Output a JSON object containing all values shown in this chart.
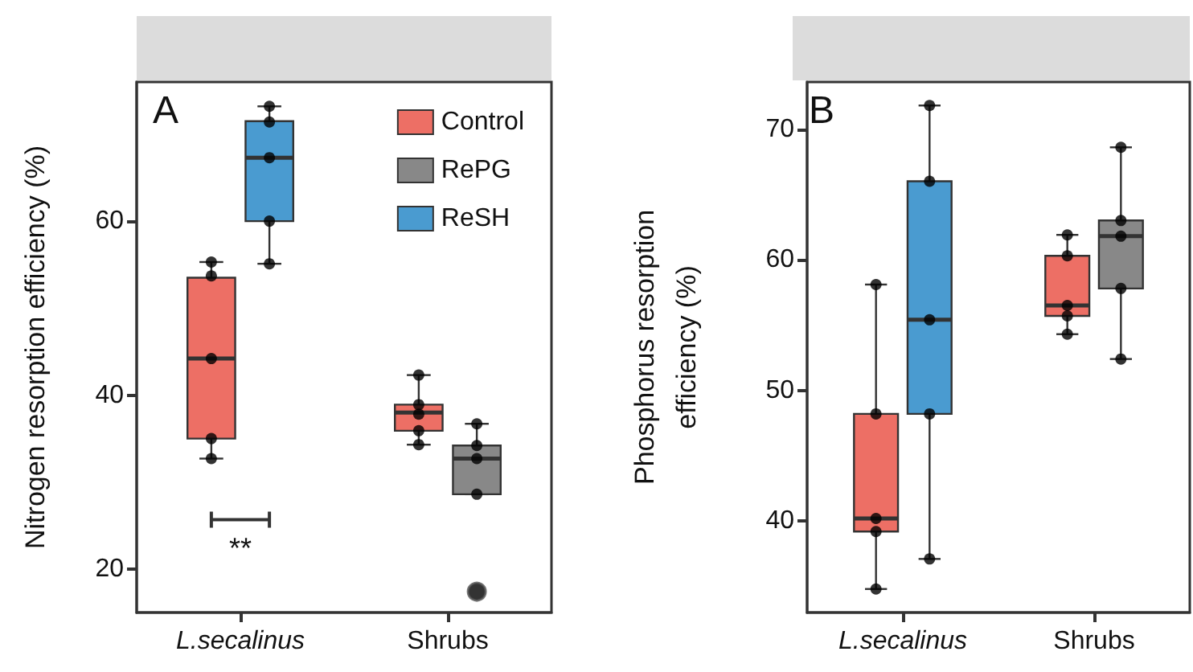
{
  "chart_data": [
    {
      "type": "box",
      "ylabel": "Nitrogen resorption efficiency (%)",
      "categories": [
        "L.secalinus",
        "Shrubs"
      ],
      "ylim": [
        15,
        76
      ],
      "yticks": [
        20,
        40,
        60
      ],
      "grid": false,
      "legend": "top right",
      "annotations": [
        "A",
        "**"
      ],
      "series": [
        {
          "name": "Control",
          "color": "#ed6f65",
          "boxes": [
            {
              "low": 32.7,
              "q1": 35.0,
              "median": 44.2,
              "q3": 53.5,
              "high": 55.3
            },
            {
              "low": 34.3,
              "q1": 35.9,
              "median": 38.0,
              "q3": 38.9,
              "high": 42.3
            }
          ]
        },
        {
          "type": "scatter",
          "color": "#000000",
          "x": [
            "L.secalinus",
            "L.secalinus",
            "L.secalinus",
            "L.secalinus",
            "L.secalinus",
            "Shrubs",
            "Shrubs",
            "Shrubs",
            "Shrubs",
            "Shrubs"
          ],
          "values": [
            55.3,
            53.7,
            44.2,
            35.0,
            32.7,
            42.3,
            38.9,
            37.8,
            35.9,
            34.3
          ]
        },
        {
          "name": "RePG",
          "color": "#888888",
          "boxes": [
            null,
            {
              "low": 28.6,
              "q1": 28.6,
              "median": 32.7,
              "q3": 34.2,
              "high": 36.7,
              "outliers": [
                17.4
              ]
            }
          ]
        },
        {
          "type": "scatter",
          "color": "#000000",
          "x": [
            "Shrubs",
            "Shrubs",
            "Shrubs",
            "Shrubs"
          ],
          "values": [
            36.7,
            34.2,
            32.7,
            28.6
          ]
        },
        {
          "name": "ReSH",
          "color": "#4a9bd0",
          "boxes": [
            {
              "low": 55.1,
              "q1": 60.0,
              "median": 67.3,
              "q3": 71.5,
              "high": 73.2
            },
            null
          ]
        },
        {
          "type": "scatter",
          "color": "#000000",
          "x": [
            "L.secalinus",
            "L.secalinus",
            "L.secalinus",
            "L.secalinus",
            "L.secalinus"
          ],
          "values": [
            73.2,
            71.4,
            67.3,
            60.0,
            55.1
          ]
        }
      ]
    },
    {
      "type": "box",
      "ylabel": "Phosphorus resorption efficiency (%)",
      "categories": [
        "L.secalinus",
        "Shrubs"
      ],
      "ylim": [
        33,
        73.6
      ],
      "yticks": [
        40,
        50,
        60,
        70
      ],
      "grid": false,
      "annotations": [
        "B"
      ],
      "series": [
        {
          "color": "#ed6f65",
          "boxes": [
            {
              "low": 34.8,
              "q1": 39.2,
              "median": 40.2,
              "q3": 48.2,
              "high": 58.1
            },
            {
              "low": 54.3,
              "q1": 55.7,
              "median": 56.5,
              "q3": 60.3,
              "high": 61.9
            }
          ]
        },
        {
          "type": "scatter",
          "color": "#000000",
          "x": [
            "L.secalinus",
            "L.secalinus",
            "L.secalinus",
            "L.secalinus",
            "L.secalinus",
            "Shrubs",
            "Shrubs",
            "Shrubs",
            "Shrubs",
            "Shrubs"
          ],
          "values": [
            58.1,
            48.2,
            40.2,
            39.2,
            34.8,
            61.9,
            60.3,
            56.5,
            55.7,
            54.3
          ]
        },
        {
          "color": "#888888",
          "boxes": [
            null,
            {
              "low": 52.4,
              "q1": 57.8,
              "median": 61.8,
              "q3": 63.0,
              "high": 68.6
            }
          ]
        },
        {
          "type": "scatter",
          "color": "#000000",
          "x": [
            "Shrubs",
            "Shrubs",
            "Shrubs",
            "Shrubs",
            "Shrubs"
          ],
          "values": [
            68.6,
            63.0,
            61.8,
            57.8,
            52.4
          ]
        },
        {
          "color": "#4a9bd0",
          "boxes": [
            {
              "low": 37.1,
              "q1": 48.2,
              "median": 55.4,
              "q3": 66.0,
              "high": 71.8
            },
            null
          ]
        },
        {
          "type": "scatter",
          "color": "#000000",
          "x": [
            "L.secalinus",
            "L.secalinus",
            "L.secalinus",
            "L.secalinus",
            "L.secalinus"
          ],
          "values": [
            71.8,
            66.0,
            55.4,
            48.2,
            37.1
          ]
        }
      ]
    }
  ]
}
